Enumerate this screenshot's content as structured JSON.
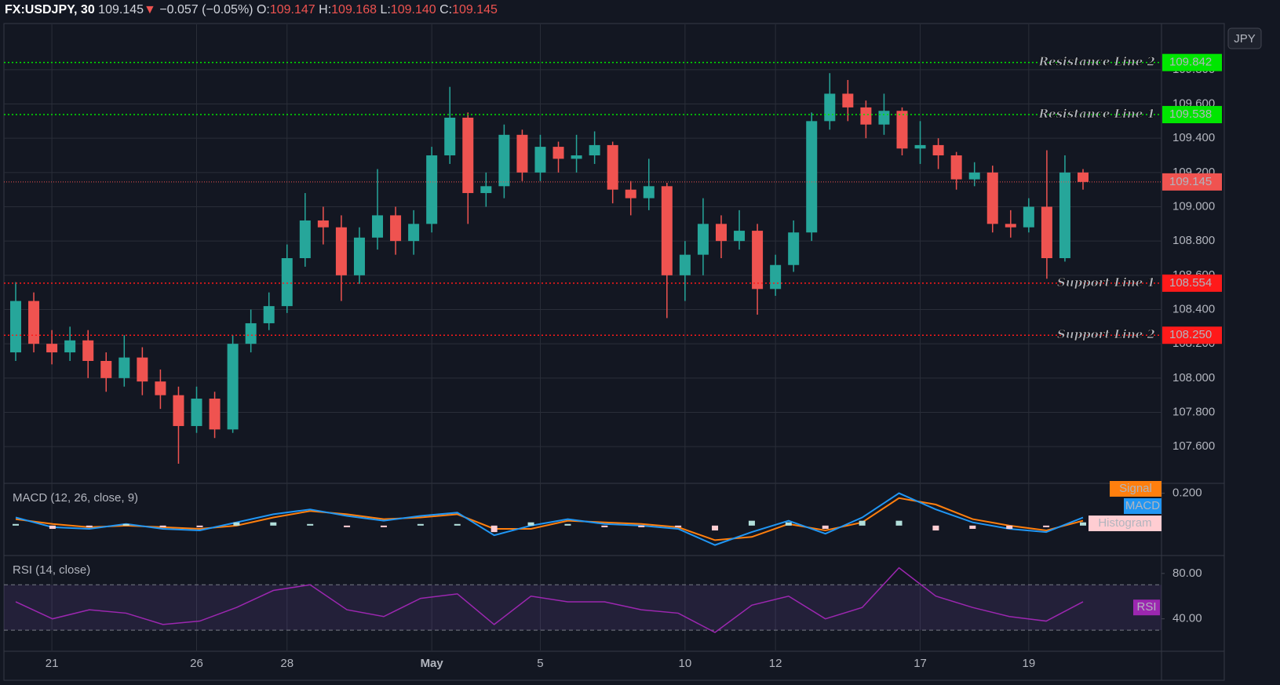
{
  "header": {
    "symbol": "FX:USDJPY, 30",
    "last": "109.145",
    "arrow": "▼",
    "change": "−0.057 (−0.05%)",
    "o_label": "O:",
    "open": "109.147",
    "h_label": "H:",
    "high": "109.168",
    "l_label": "L:",
    "low": "109.140",
    "c_label": "C:",
    "close": "109.145"
  },
  "currency": "JPY",
  "chart_data": [
    {
      "type": "candlestick",
      "up_color": "#26a69a",
      "down_color": "#ef5350",
      "grid": true,
      "categories": [
        null,
        null,
        "21",
        null,
        null,
        null,
        null,
        null,
        null,
        null,
        "26",
        null,
        null,
        null,
        null,
        "28",
        null,
        null,
        null,
        null,
        null,
        null,
        null,
        "May",
        null,
        null,
        null,
        null,
        null,
        "5",
        null,
        null,
        null,
        null,
        null,
        null,
        null,
        "10",
        null,
        null,
        null,
        null,
        "12",
        null,
        null,
        null,
        null,
        null,
        null,
        null,
        "17",
        null,
        null,
        null,
        null,
        null,
        "19",
        null,
        null,
        null
      ],
      "open": [
        108.15,
        108.45,
        108.2,
        108.15,
        108.22,
        108.1,
        108.0,
        108.12,
        107.98,
        107.9,
        107.72,
        107.88,
        107.7,
        108.2,
        108.32,
        108.42,
        108.7,
        108.92,
        108.88,
        108.6,
        108.82,
        108.95,
        108.8,
        108.9,
        109.3,
        109.52,
        109.08,
        109.12,
        109.42,
        109.2,
        109.35,
        109.28,
        109.3,
        109.36,
        109.1,
        109.05,
        109.12,
        108.6,
        108.72,
        108.9,
        108.8,
        108.86,
        108.52,
        108.66,
        108.85,
        109.5,
        109.66,
        109.58,
        109.48,
        109.56,
        109.34,
        109.36,
        109.3,
        109.16,
        109.2,
        108.9,
        108.88,
        109.0,
        108.7,
        109.2
      ],
      "high": [
        108.56,
        108.5,
        108.28,
        108.3,
        108.28,
        108.15,
        108.25,
        108.18,
        108.05,
        107.95,
        107.95,
        107.92,
        108.25,
        108.4,
        108.5,
        108.78,
        109.08,
        109.0,
        108.95,
        108.88,
        109.22,
        109.0,
        108.98,
        109.35,
        109.7,
        109.55,
        109.2,
        109.48,
        109.45,
        109.42,
        109.38,
        109.42,
        109.44,
        109.38,
        109.15,
        109.28,
        109.14,
        108.8,
        109.05,
        108.95,
        108.98,
        108.9,
        108.72,
        108.92,
        109.55,
        109.78,
        109.74,
        109.62,
        109.66,
        109.58,
        109.5,
        109.4,
        109.32,
        109.26,
        109.24,
        108.98,
        109.05,
        109.33,
        109.3,
        109.22
      ],
      "low": [
        108.1,
        108.15,
        108.08,
        108.1,
        108.0,
        107.92,
        107.95,
        107.9,
        107.82,
        107.5,
        107.68,
        107.65,
        107.68,
        108.15,
        108.28,
        108.38,
        108.65,
        108.78,
        108.45,
        108.55,
        108.75,
        108.72,
        108.72,
        108.85,
        109.25,
        108.9,
        109.0,
        109.05,
        109.15,
        109.15,
        109.2,
        109.2,
        109.25,
        109.02,
        108.95,
        108.98,
        108.35,
        108.45,
        108.6,
        108.7,
        108.75,
        108.37,
        108.48,
        108.62,
        108.8,
        109.45,
        109.5,
        109.4,
        109.42,
        109.3,
        109.25,
        109.22,
        109.1,
        109.12,
        108.85,
        108.82,
        108.85,
        108.58,
        108.68,
        109.1
      ],
      "close": [
        108.45,
        108.2,
        108.15,
        108.22,
        108.1,
        108.0,
        108.12,
        107.98,
        107.9,
        107.72,
        107.88,
        107.7,
        108.2,
        108.32,
        108.42,
        108.7,
        108.92,
        108.88,
        108.6,
        108.82,
        108.95,
        108.8,
        108.9,
        109.3,
        109.52,
        109.08,
        109.12,
        109.42,
        109.2,
        109.35,
        109.28,
        109.3,
        109.36,
        109.1,
        109.05,
        109.12,
        108.6,
        108.72,
        108.9,
        108.8,
        108.86,
        108.52,
        108.66,
        108.85,
        109.5,
        109.66,
        109.58,
        109.48,
        109.56,
        109.34,
        109.36,
        109.3,
        109.16,
        109.2,
        108.9,
        108.88,
        109.0,
        108.7,
        109.2,
        109.145
      ],
      "ylim": [
        107.39,
        110.065
      ],
      "yticks": [
        {
          "value": 107.6,
          "label": "107.600"
        },
        {
          "value": 107.8,
          "label": "107.800"
        },
        {
          "value": 108.0,
          "label": "108.000"
        },
        {
          "value": 108.2,
          "label": "108.200"
        },
        {
          "value": 108.4,
          "label": "108.400"
        },
        {
          "value": 108.6,
          "label": "108.600"
        },
        {
          "value": 108.8,
          "label": "108.800"
        },
        {
          "value": 109.0,
          "label": "109.000"
        },
        {
          "value": 109.2,
          "label": "109.200"
        },
        {
          "value": 109.4,
          "label": "109.400"
        },
        {
          "value": 109.6,
          "label": "109.600"
        },
        {
          "value": 109.8,
          "label": "109.800"
        }
      ],
      "levels": {
        "names": [
          "Resistance Line 2",
          "Resistance Line 1",
          "Support Line 1",
          "Support Line 2"
        ],
        "values": [
          109.842,
          109.538,
          108.554,
          108.25
        ],
        "value_labels": [
          "109.842",
          "109.538",
          "108.554",
          "108.250"
        ],
        "colors": [
          "#00e600",
          "#00e600",
          "#ff1a1a",
          "#ff1a1a"
        ]
      },
      "last_price": 109.145,
      "last_color": "#f05350"
    },
    {
      "type": "macd",
      "title": "MACD (12, 26, close, 9)",
      "ylim": [
        -0.18,
        0.256
      ],
      "yticks": [
        {
          "value": 0.2,
          "label": "0.200"
        }
      ],
      "series": [
        {
          "name": "Signal",
          "color": "#ff7f0e",
          "values": [
            0.04,
            0.01,
            -0.01,
            0.0,
            -0.01,
            -0.02,
            0.0,
            0.05,
            0.09,
            0.07,
            0.04,
            0.05,
            0.07,
            -0.02,
            -0.02,
            0.03,
            0.02,
            0.01,
            -0.01,
            -0.09,
            -0.07,
            0.01,
            -0.03,
            0.02,
            0.17,
            0.13,
            0.04,
            0.0,
            -0.03,
            0.03
          ]
        },
        {
          "name": "MACD",
          "color": "#2196f3",
          "values": [
            0.05,
            -0.01,
            -0.02,
            0.01,
            -0.02,
            -0.03,
            0.02,
            0.07,
            0.1,
            0.06,
            0.03,
            0.06,
            0.08,
            -0.06,
            0.0,
            0.04,
            0.01,
            0.0,
            -0.02,
            -0.12,
            -0.04,
            0.03,
            -0.05,
            0.05,
            0.2,
            0.1,
            0.02,
            -0.02,
            -0.04,
            0.05
          ]
        },
        {
          "name": "Histogram",
          "color": "#ffcdd2",
          "up_color": "#b2dfdb",
          "down_color": "#ffcdd2",
          "values": [
            0.01,
            -0.02,
            -0.01,
            0.01,
            -0.01,
            -0.01,
            0.02,
            0.02,
            0.01,
            -0.01,
            -0.01,
            0.01,
            0.01,
            -0.04,
            0.02,
            0.01,
            -0.01,
            -0.01,
            -0.01,
            -0.03,
            0.03,
            0.02,
            -0.02,
            0.03,
            0.03,
            -0.03,
            -0.02,
            -0.02,
            -0.01,
            0.02
          ]
        }
      ]
    },
    {
      "type": "rsi",
      "title": "RSI (14, close)",
      "ylim": [
        12.1,
        95.1
      ],
      "yticks": [
        {
          "value": 80,
          "label": "80.00"
        },
        {
          "value": 40,
          "label": "40.00"
        }
      ],
      "bands": [
        70,
        30
      ],
      "series": [
        {
          "name": "RSI",
          "color": "#9c27b0",
          "values": [
            55,
            40,
            48,
            45,
            35,
            38,
            50,
            65,
            70,
            48,
            42,
            58,
            62,
            35,
            60,
            55,
            55,
            48,
            45,
            28,
            52,
            60,
            40,
            50,
            85,
            60,
            50,
            42,
            38,
            55
          ]
        }
      ]
    }
  ]
}
